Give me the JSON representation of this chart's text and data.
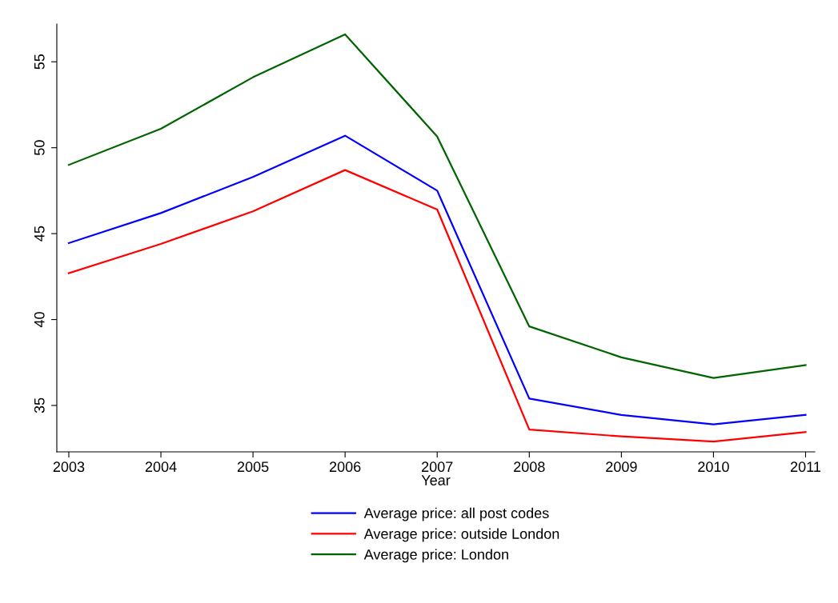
{
  "chart_data": {
    "type": "line",
    "xlabel": "Year",
    "x": [
      2003,
      2004,
      2005,
      2006,
      2007,
      2008,
      2009,
      2010,
      2011
    ],
    "xlim": [
      2002.87,
      2011.1
    ],
    "xticks": [
      2003,
      2004,
      2005,
      2006,
      2007,
      2008,
      2009,
      2010,
      2011
    ],
    "ylim": [
      32.3,
      57.2
    ],
    "yticks": [
      35,
      40,
      45,
      50,
      55
    ],
    "grid": false,
    "legend": "bottom",
    "marker": "none",
    "line_style": "solid",
    "series": [
      {
        "name": "Average price: all post codes",
        "color": "#0000ff",
        "values": [
          44.45,
          46.2,
          48.3,
          50.7,
          47.5,
          35.4,
          34.45,
          33.9,
          34.45
        ]
      },
      {
        "name": "Average price: outside London",
        "color": "#ff0000",
        "values": [
          42.7,
          44.4,
          46.3,
          48.7,
          46.4,
          33.6,
          33.2,
          32.9,
          33.45
        ]
      },
      {
        "name": "Average price: London",
        "color": "#006400",
        "values": [
          49.0,
          51.1,
          54.1,
          56.6,
          50.65,
          39.6,
          37.8,
          36.6,
          37.35
        ]
      }
    ]
  }
}
